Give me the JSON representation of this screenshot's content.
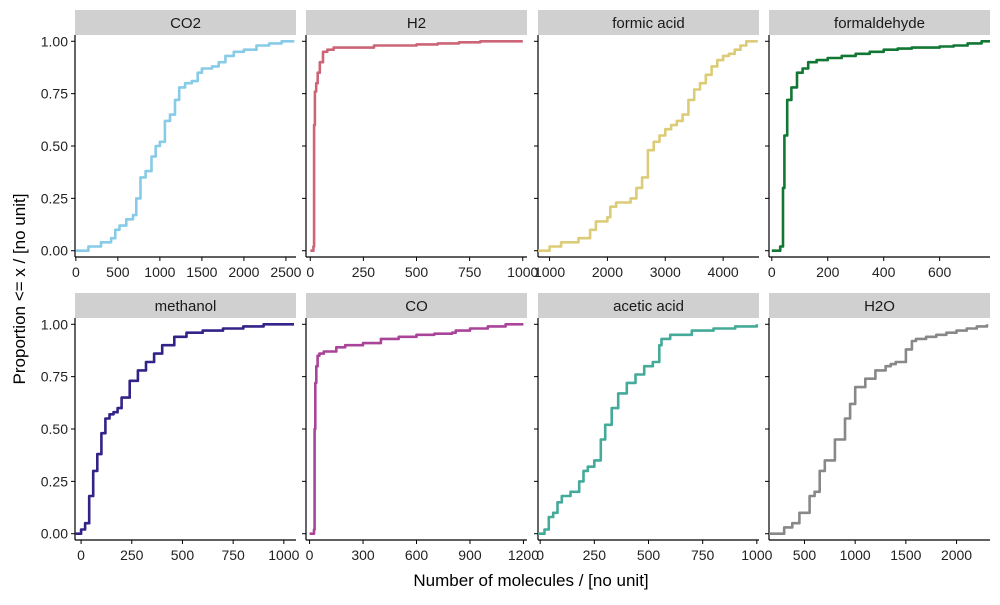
{
  "chart_data": {
    "type": "line",
    "kind": "empirical cumulative distribution (step lines), faceted small multiples, 2 rows x 4 columns",
    "xlabel": "Number of molecules / [no unit]",
    "ylabel": "Proportion <= x / [no unit]",
    "ylim": [
      -0.03,
      1.03
    ],
    "yticks": [
      0.0,
      0.25,
      0.5,
      0.75,
      1.0
    ],
    "ytick_labels": [
      "0.00",
      "0.25",
      "0.50",
      "0.75",
      "1.00"
    ],
    "grid": false,
    "legend": "none",
    "strip_color": "#d0d0d0",
    "panels": [
      {
        "name": "CO2",
        "color": "#87cbe6",
        "xlim": [
          -10,
          2620
        ],
        "xticks": [
          0,
          500,
          1000,
          1500,
          2000,
          2500
        ],
        "x": [
          0,
          150,
          300,
          420,
          470,
          520,
          600,
          680,
          720,
          770,
          830,
          900,
          950,
          1000,
          1060,
          1120,
          1180,
          1230,
          1300,
          1380,
          1450,
          1500,
          1560,
          1620,
          1700,
          1780,
          1880,
          2000,
          2150,
          2300,
          2450,
          2600
        ],
        "y": [
          0.0,
          0.02,
          0.04,
          0.06,
          0.1,
          0.12,
          0.15,
          0.17,
          0.25,
          0.35,
          0.38,
          0.45,
          0.5,
          0.52,
          0.62,
          0.65,
          0.72,
          0.78,
          0.8,
          0.81,
          0.85,
          0.87,
          0.87,
          0.88,
          0.9,
          0.93,
          0.95,
          0.96,
          0.98,
          0.99,
          1.0,
          1.0
        ]
      },
      {
        "name": "H2",
        "color": "#cc6677",
        "xlim": [
          -20,
          1020
        ],
        "xticks": [
          0,
          250,
          500,
          750,
          1000
        ],
        "x": [
          0,
          15,
          18,
          22,
          28,
          35,
          45,
          60,
          80,
          110,
          200,
          300,
          400,
          500,
          600,
          700,
          800,
          900,
          1000
        ],
        "y": [
          0.0,
          0.02,
          0.6,
          0.76,
          0.8,
          0.85,
          0.9,
          0.95,
          0.96,
          0.97,
          0.97,
          0.98,
          0.98,
          0.985,
          0.99,
          0.995,
          1.0,
          1.0,
          1.0
        ]
      },
      {
        "name": "formic acid",
        "color": "#ddcc77",
        "xlim": [
          800,
          4620
        ],
        "xticks": [
          1000,
          2000,
          3000,
          4000
        ],
        "x": [
          800,
          1000,
          1200,
          1500,
          1700,
          1800,
          2000,
          2050,
          2150,
          2400,
          2500,
          2600,
          2700,
          2800,
          2900,
          3000,
          3100,
          3200,
          3300,
          3400,
          3500,
          3600,
          3700,
          3800,
          3900,
          4000,
          4100,
          4200,
          4300,
          4400,
          4500,
          4600
        ],
        "y": [
          0.0,
          0.02,
          0.04,
          0.06,
          0.1,
          0.14,
          0.16,
          0.21,
          0.23,
          0.25,
          0.3,
          0.35,
          0.48,
          0.52,
          0.55,
          0.58,
          0.6,
          0.62,
          0.65,
          0.72,
          0.77,
          0.8,
          0.84,
          0.88,
          0.91,
          0.93,
          0.94,
          0.96,
          0.98,
          1.0,
          1.0,
          1.0
        ]
      },
      {
        "name": "formaldehyde",
        "color": "#117733",
        "xlim": [
          -10,
          780
        ],
        "xticks": [
          0,
          200,
          400,
          600
        ],
        "x": [
          0,
          30,
          40,
          45,
          55,
          70,
          90,
          110,
          130,
          160,
          200,
          250,
          300,
          350,
          400,
          450,
          500,
          550,
          600,
          650,
          700,
          750,
          780
        ],
        "y": [
          0.0,
          0.02,
          0.3,
          0.55,
          0.72,
          0.78,
          0.85,
          0.87,
          0.9,
          0.91,
          0.92,
          0.93,
          0.94,
          0.95,
          0.96,
          0.965,
          0.97,
          0.97,
          0.975,
          0.98,
          0.99,
          1.0,
          1.0
        ]
      },
      {
        "name": "methanol",
        "color": "#332288",
        "xlim": [
          -30,
          1060
        ],
        "xticks": [
          0,
          250,
          500,
          750,
          1000
        ],
        "x": [
          -30,
          0,
          20,
          40,
          60,
          80,
          100,
          120,
          140,
          160,
          180,
          200,
          240,
          280,
          320,
          360,
          400,
          460,
          520,
          600,
          700,
          800,
          900,
          1000,
          1050
        ],
        "y": [
          0.0,
          0.02,
          0.05,
          0.18,
          0.3,
          0.38,
          0.48,
          0.55,
          0.57,
          0.58,
          0.6,
          0.65,
          0.73,
          0.78,
          0.82,
          0.86,
          0.9,
          0.94,
          0.96,
          0.97,
          0.98,
          0.99,
          1.0,
          1.0,
          1.0
        ]
      },
      {
        "name": "CO",
        "color": "#aa4499",
        "xlim": [
          -20,
          1220
        ],
        "xticks": [
          0,
          300,
          600,
          900,
          1200
        ],
        "x": [
          0,
          25,
          28,
          32,
          38,
          45,
          55,
          80,
          150,
          200,
          300,
          400,
          500,
          600,
          700,
          800,
          820,
          900,
          1000,
          1100,
          1200
        ],
        "y": [
          0.0,
          0.02,
          0.5,
          0.72,
          0.8,
          0.85,
          0.86,
          0.87,
          0.89,
          0.9,
          0.91,
          0.93,
          0.94,
          0.95,
          0.955,
          0.96,
          0.97,
          0.98,
          0.99,
          1.0,
          1.0
        ]
      },
      {
        "name": "acetic acid",
        "color": "#44aa99",
        "xlim": [
          -10,
          1010
        ],
        "xticks": [
          0,
          250,
          500,
          750,
          1000
        ],
        "x": [
          -10,
          20,
          40,
          60,
          80,
          100,
          140,
          180,
          200,
          220,
          250,
          280,
          300,
          330,
          360,
          400,
          440,
          480,
          520,
          550,
          560,
          600,
          700,
          800,
          900,
          1000
        ],
        "y": [
          0.0,
          0.02,
          0.08,
          0.1,
          0.15,
          0.18,
          0.2,
          0.25,
          0.3,
          0.32,
          0.35,
          0.45,
          0.52,
          0.6,
          0.67,
          0.72,
          0.76,
          0.8,
          0.82,
          0.9,
          0.93,
          0.95,
          0.97,
          0.98,
          0.99,
          1.0
        ]
      },
      {
        "name": "H2O",
        "color": "#888888",
        "xlim": [
          150,
          2330
        ],
        "xticks": [
          500,
          1000,
          1500,
          2000
        ],
        "x": [
          150,
          300,
          380,
          450,
          550,
          600,
          650,
          700,
          800,
          900,
          950,
          1000,
          1100,
          1200,
          1300,
          1350,
          1400,
          1500,
          1560,
          1600,
          1700,
          1800,
          1900,
          2000,
          2100,
          2200,
          2300
        ],
        "y": [
          0.0,
          0.03,
          0.05,
          0.1,
          0.18,
          0.2,
          0.3,
          0.35,
          0.45,
          0.55,
          0.62,
          0.7,
          0.74,
          0.78,
          0.8,
          0.81,
          0.82,
          0.88,
          0.92,
          0.93,
          0.94,
          0.95,
          0.96,
          0.97,
          0.98,
          0.99,
          1.0
        ]
      }
    ]
  }
}
